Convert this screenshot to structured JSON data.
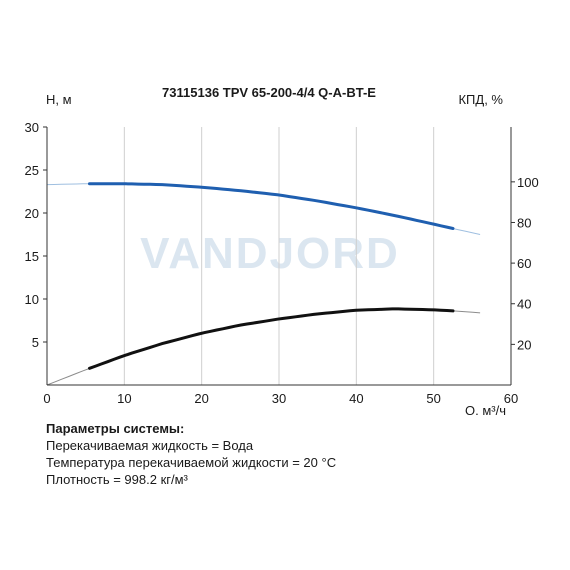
{
  "chart_data": {
    "type": "line",
    "title": "73115136 TPV 65-200-4/4 Q-A-BT-E",
    "watermark": "VANDJORD",
    "xlabel": "Q, м³/ч",
    "ylabel_left": "H, м",
    "ylabel_right": "КПД, %",
    "xlim": [
      0,
      60
    ],
    "ylim_left": [
      0,
      30
    ],
    "ylim_right": [
      0,
      127
    ],
    "xticks": [
      "0",
      "10",
      "20",
      "30",
      "40",
      "50",
      "60"
    ],
    "yticks_left": [
      "5",
      "10",
      "15",
      "20",
      "25",
      "30"
    ],
    "yticks_right": [
      "20",
      "40",
      "60",
      "80",
      "100"
    ],
    "grid": "vertical",
    "series": [
      {
        "axis": "left",
        "color": "#1f5fb0",
        "thin_color": "#9fbfe0",
        "operating_range": [
          5.5,
          52.5
        ],
        "x": [
          0,
          5,
          10,
          15,
          20,
          25,
          30,
          35,
          40,
          45,
          50,
          52.5,
          56
        ],
        "y": [
          23.3,
          23.4,
          23.4,
          23.3,
          23.0,
          22.6,
          22.1,
          21.4,
          20.6,
          19.7,
          18.7,
          18.2,
          17.5
        ]
      },
      {
        "axis": "right",
        "color": "#111111",
        "thin_color": "#8c8c8c",
        "operating_range": [
          5.5,
          52.5
        ],
        "x": [
          0,
          5,
          10,
          15,
          20,
          25,
          30,
          35,
          40,
          45,
          50,
          52.5,
          56
        ],
        "y": [
          0,
          7.5,
          14.5,
          20.5,
          25.5,
          29.5,
          32.5,
          35.0,
          36.8,
          37.5,
          37.0,
          36.5,
          35.5
        ]
      }
    ]
  },
  "params": {
    "heading": "Параметры системы:",
    "lines": [
      "Перекачиваемая жидкость = Вода",
      "Температура перекачиваемой жидкости = 20 °C",
      "Плотность = 998.2 кг/м³"
    ]
  }
}
